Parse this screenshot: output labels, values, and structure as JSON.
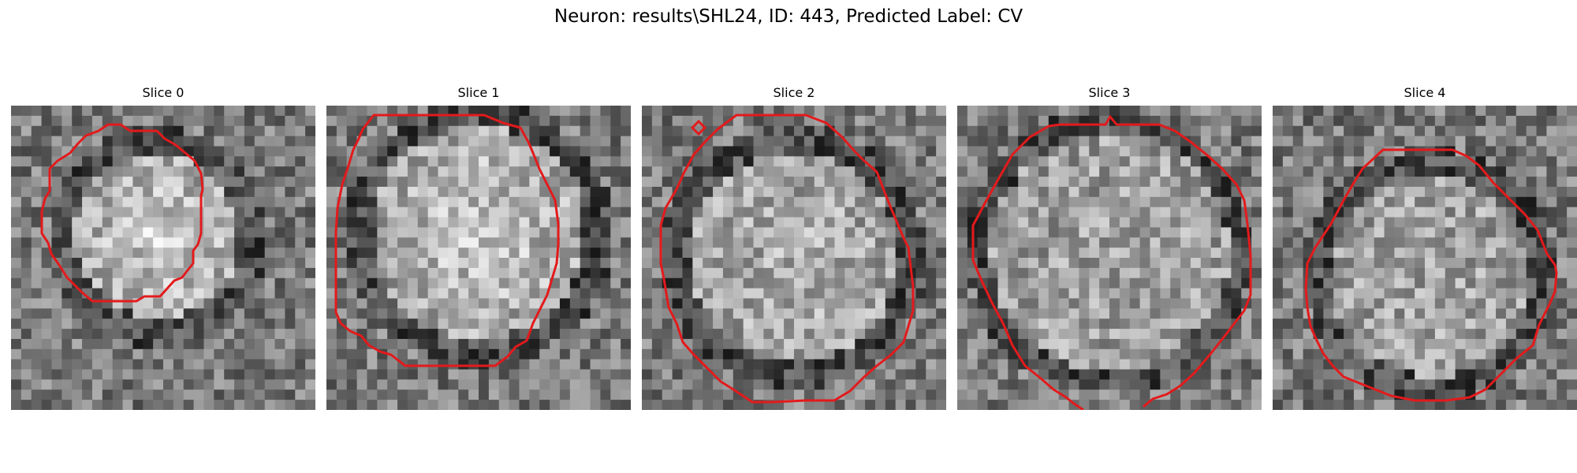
{
  "figure": {
    "title": "Neuron: results\\SHL24, ID: 443, Predicted Label: CV"
  },
  "slices": [
    {
      "title": "Slice 0",
      "contour_color": "#e31a1c",
      "seed": 11
    },
    {
      "title": "Slice 1",
      "contour_color": "#e31a1c",
      "seed": 23
    },
    {
      "title": "Slice 2",
      "contour_color": "#e31a1c",
      "seed": 37
    },
    {
      "title": "Slice 3",
      "contour_color": "#e31a1c",
      "seed": 51
    },
    {
      "title": "Slice 4",
      "contour_color": "#e31a1c",
      "seed": 67
    }
  ]
}
